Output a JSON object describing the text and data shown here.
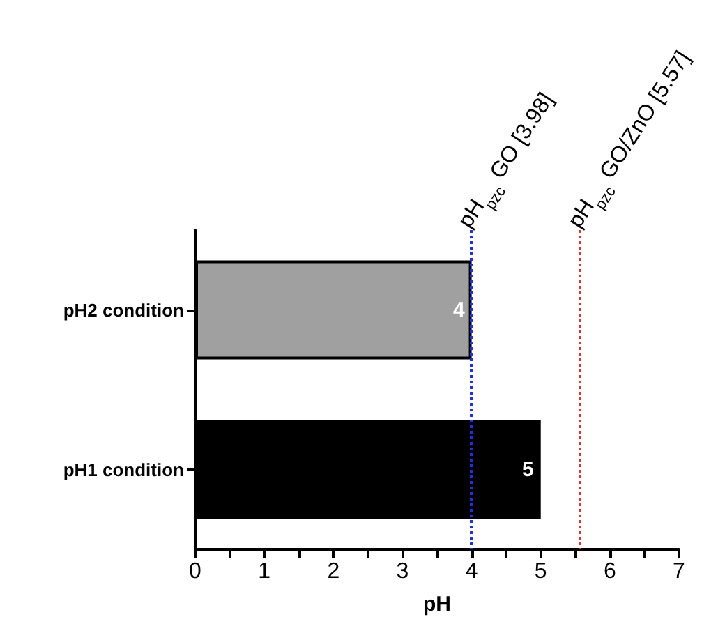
{
  "chart_data": {
    "type": "bar",
    "orientation": "horizontal",
    "xlabel": "pH",
    "categories": [
      "pH2 condition",
      "pH1 condition"
    ],
    "values": [
      4,
      5
    ],
    "colors": [
      "#a0a0a0",
      "#000000"
    ],
    "data_labels": true,
    "xlim": [
      0,
      7
    ],
    "xticks": [
      0,
      {
        "value": 0.5,
        "label": null
      },
      1,
      {
        "value": 1.5,
        "label": null
      },
      2,
      {
        "value": 2.5,
        "label": null
      },
      3,
      {
        "value": 3.5,
        "label": null
      },
      4,
      {
        "value": 4.5,
        "label": null
      },
      5,
      {
        "value": 5.5,
        "label": null
      },
      6,
      {
        "value": 6.5,
        "label": null
      },
      7
    ],
    "ref_lines": [
      {
        "axis": "x",
        "value": 3.98,
        "label": "pH$_{pzc}$ GO [3.98]",
        "color": "#2030e0",
        "line_style": "dotted"
      },
      {
        "axis": "x",
        "value": 5.57,
        "label": "pH$_{pzc}$ GO/ZnO [5.57]",
        "color": "#e03030",
        "line_style": "dotted"
      }
    ],
    "grid": false
  }
}
